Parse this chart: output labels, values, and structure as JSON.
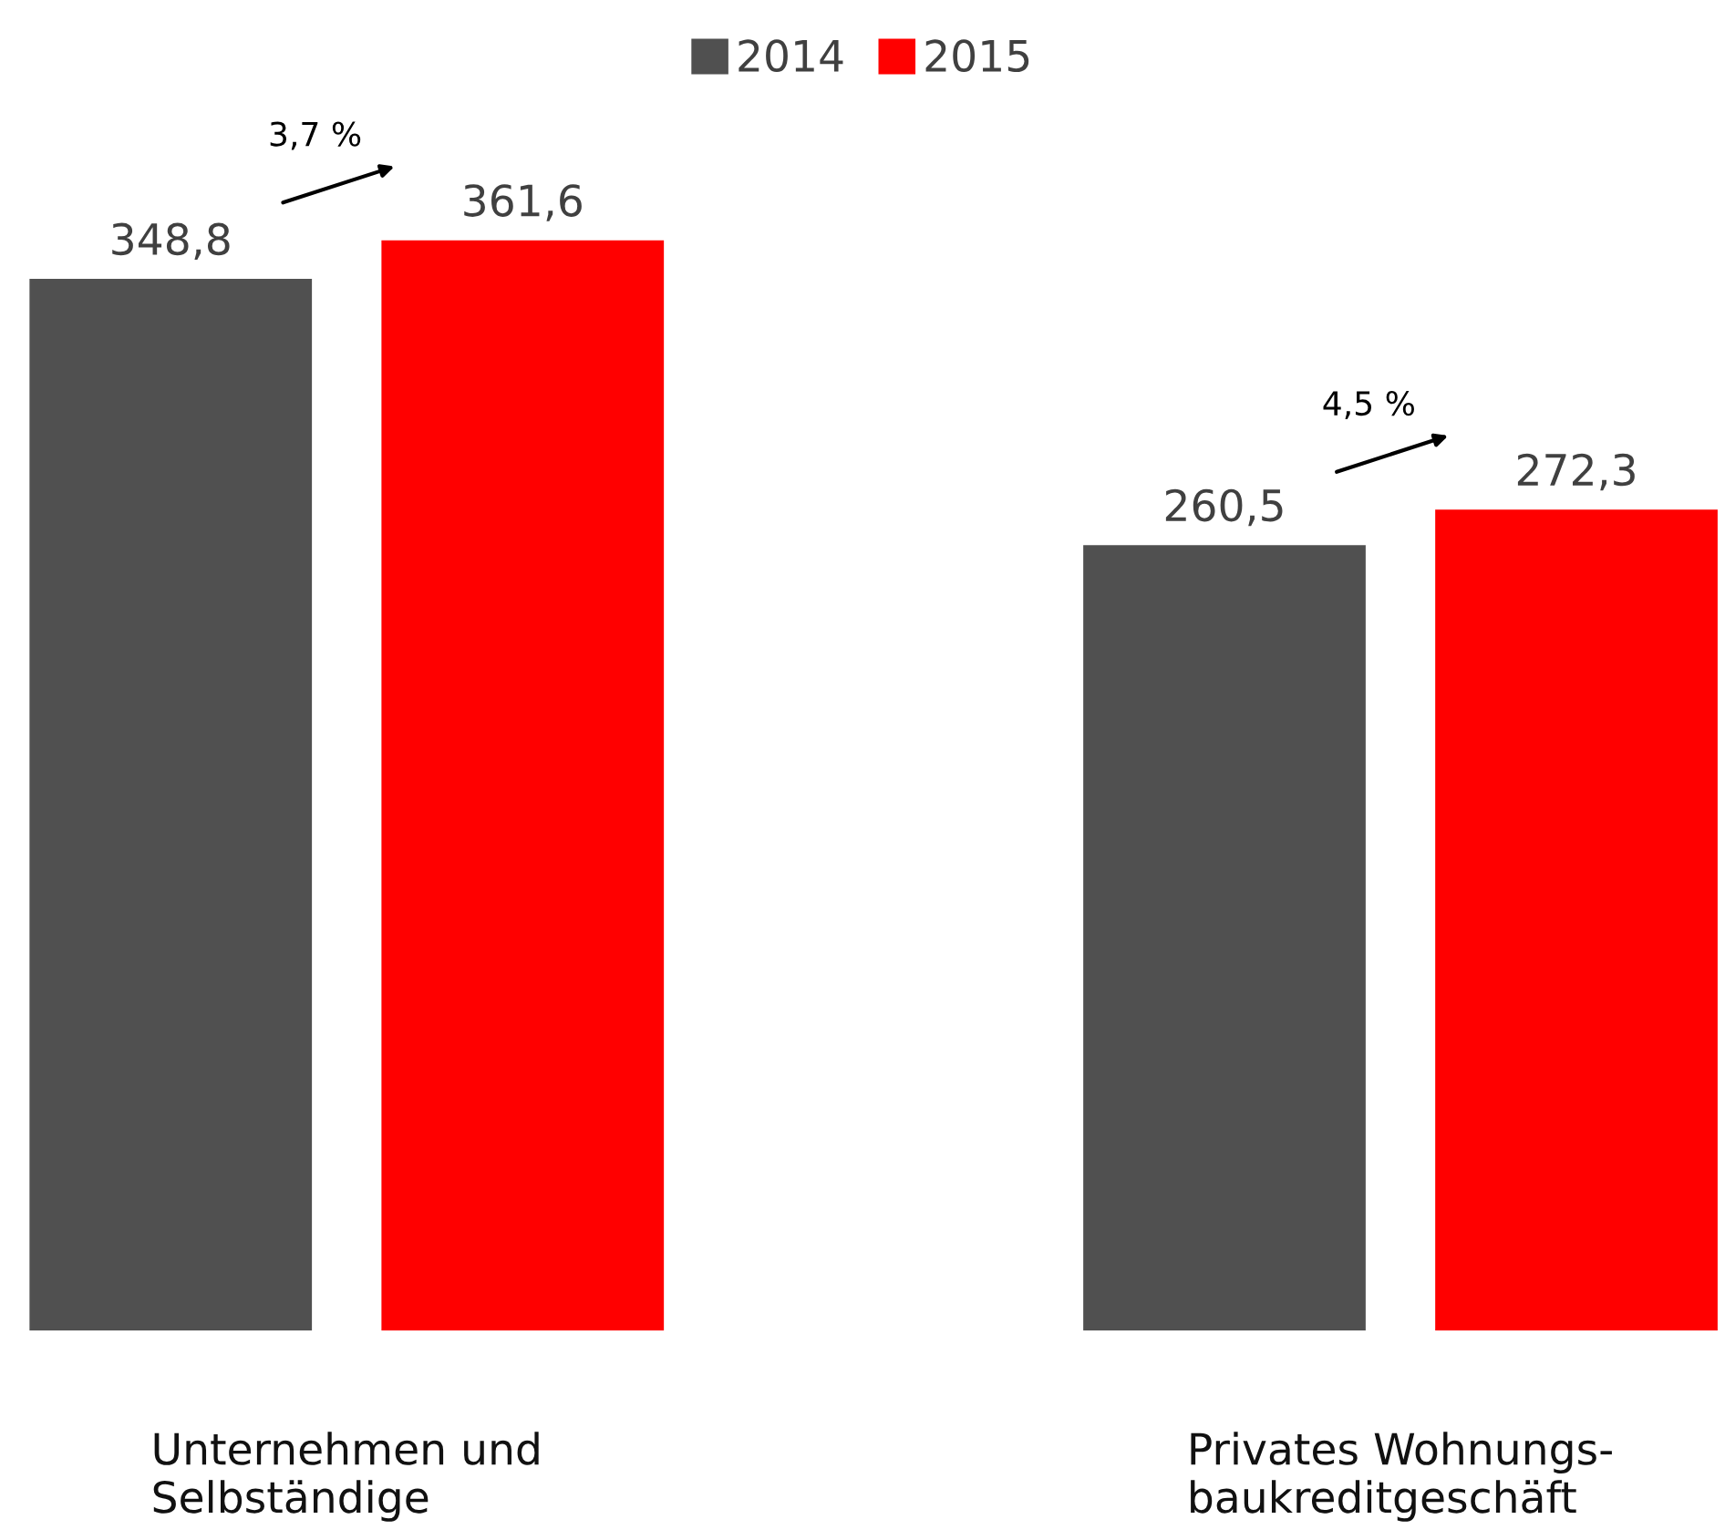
{
  "chart_data": {
    "type": "bar",
    "categories": [
      "Unternehmen und\nSelbständige",
      "Privates Wohnungs-\nbaukreditgeschäft"
    ],
    "series": [
      {
        "name": "2014",
        "color": "#505050",
        "values": [
          348.8,
          260.5
        ],
        "value_labels": [
          "348,8",
          "260,5"
        ]
      },
      {
        "name": "2015",
        "color": "#ff0000",
        "values": [
          361.6,
          272.3
        ],
        "value_labels": [
          "361,6",
          "272,3"
        ]
      }
    ],
    "legend": "top",
    "grid": false,
    "annotations": [
      "3,7 %",
      "4,5 %"
    ]
  }
}
